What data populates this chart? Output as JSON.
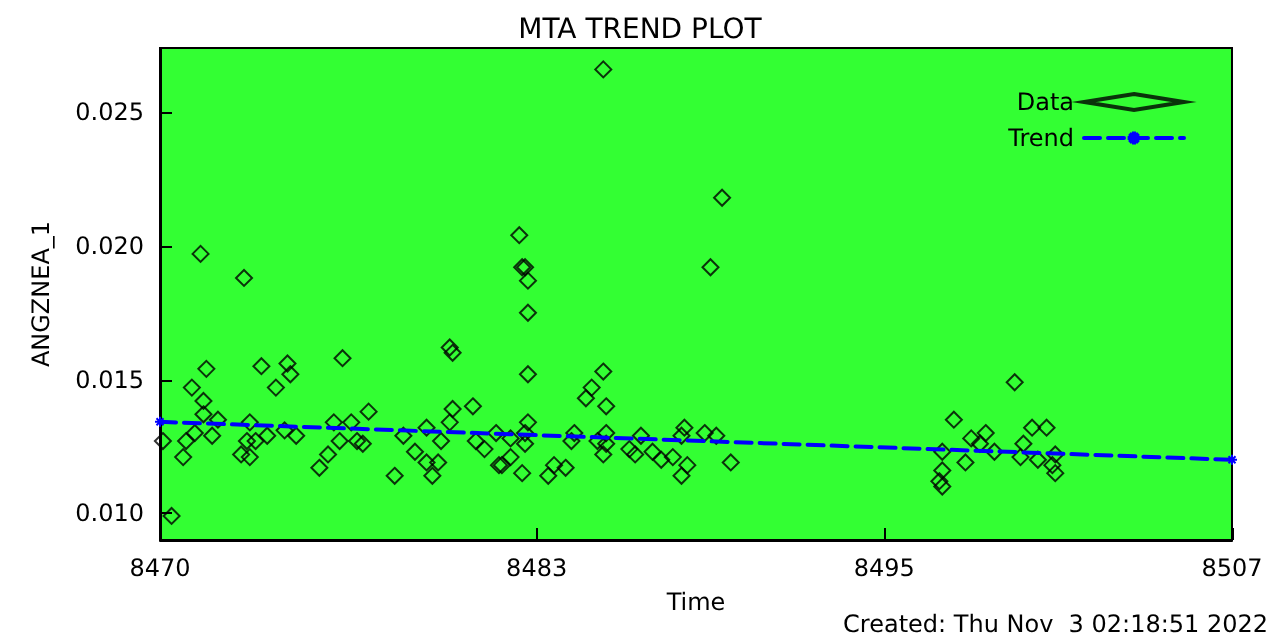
{
  "chart_data": {
    "type": "scatter",
    "title": "MTA TREND PLOT",
    "xlabel": "Time",
    "ylabel": "ANGZNEA_1",
    "annotations": [
      "Created: Thu Nov  3 02:18:51 2022"
    ],
    "xlim": [
      8470,
      8507
    ],
    "xticks": [
      8470,
      8483,
      8495,
      8507
    ],
    "ylim": [
      0.009,
      0.0274
    ],
    "yticks": [
      {
        "value": 0.01,
        "label": "0.010"
      },
      {
        "value": 0.015,
        "label": "0.015"
      },
      {
        "value": 0.02,
        "label": "0.020"
      },
      {
        "value": 0.025,
        "label": "0.025"
      }
    ],
    "grid": false,
    "legend": "top right",
    "series": [
      {
        "name": "Data",
        "type": "scatter",
        "marker": "diamond",
        "color": "#000000",
        "x": [
          8470.4,
          8470.1,
          8470.8,
          8471.4,
          8471.1,
          8471.5,
          8471.6,
          8470.9,
          8471.2,
          8471.5,
          8471.8,
          8472.0,
          8472.9,
          8472.8,
          8473.0,
          8473.1,
          8473.1,
          8473.5,
          8473.3,
          8473.7,
          8474.0,
          8474.3,
          8474.4,
          8474.5,
          8474.7,
          8475.5,
          8475.8,
          8476.0,
          8476.3,
          8476.2,
          8476.8,
          8476.6,
          8477.2,
          8477.0,
          8478.1,
          8478.4,
          8478.8,
          8479.2,
          8479.2,
          8479.4,
          8479.6,
          8479.7,
          8480.0,
          8480.1,
          8480.1,
          8480.0,
          8480.8,
          8480.9,
          8481.2,
          8481.7,
          8481.6,
          8482.1,
          8482.4,
          8482.6,
          8482.5,
          8482.7,
          8482.7,
          8482.7,
          8482.7,
          8482.6,
          8482.6,
          8482.1,
          8482.5,
          8481.8,
          8484.2,
          8484.3,
          8483.4,
          8483.6,
          8484.0,
          8485.3,
          8484.7,
          8484.9,
          8485.3,
          8485.4,
          8485.4,
          8485.1,
          8485.4,
          8485.3,
          8486.2,
          8486.4,
          8486.6,
          8487.0,
          8487.3,
          8487.7,
          8488.0,
          8488.1,
          8488.0,
          8488.2,
          8488.8,
          8489.2,
          8489.0,
          8489.4,
          8489.7,
          8496.9,
          8497.0,
          8497.0,
          8497.0,
          8497.4,
          8497.8,
          8498.0,
          8498.3,
          8498.5,
          8498.8,
          8499.5,
          8499.7,
          8499.8,
          8500.1,
          8500.3,
          8500.6,
          8500.8,
          8500.9,
          8500.9
        ],
        "values": [
          0.0099,
          0.0127,
          0.0121,
          0.0197,
          0.0147,
          0.0142,
          0.0154,
          0.0127,
          0.013,
          0.0137,
          0.0129,
          0.0135,
          0.0188,
          0.0122,
          0.0127,
          0.0121,
          0.0134,
          0.0155,
          0.0127,
          0.0129,
          0.0147,
          0.0131,
          0.0156,
          0.0152,
          0.0129,
          0.0117,
          0.0122,
          0.0134,
          0.0158,
          0.0127,
          0.0127,
          0.0134,
          0.0138,
          0.0126,
          0.0114,
          0.0129,
          0.0123,
          0.0132,
          0.0119,
          0.0114,
          0.0119,
          0.0127,
          0.0162,
          0.016,
          0.0139,
          0.0134,
          0.014,
          0.0127,
          0.0124,
          0.0118,
          0.013,
          0.0128,
          0.0204,
          0.0192,
          0.0192,
          0.0187,
          0.0175,
          0.0152,
          0.0134,
          0.013,
          0.0126,
          0.0121,
          0.0115,
          0.0118,
          0.0127,
          0.013,
          0.0114,
          0.0118,
          0.0117,
          0.0266,
          0.0143,
          0.0147,
          0.0153,
          0.014,
          0.013,
          0.0127,
          0.0126,
          0.0122,
          0.0124,
          0.0122,
          0.0129,
          0.0123,
          0.012,
          0.0121,
          0.0114,
          0.0132,
          0.0129,
          0.0118,
          0.013,
          0.0129,
          0.0192,
          0.0218,
          0.0119,
          0.0112,
          0.011,
          0.0116,
          0.0123,
          0.0135,
          0.0119,
          0.0128,
          0.0126,
          0.013,
          0.0123,
          0.0149,
          0.0121,
          0.0126,
          0.0132,
          0.012,
          0.0132,
          0.0118,
          0.0115,
          0.0122
        ]
      },
      {
        "name": "Trend",
        "type": "line",
        "marker": "cross",
        "line_style": "dashed",
        "color": "#0000ff",
        "x": [
          8470,
          8507
        ],
        "values": [
          0.01342,
          0.012
        ]
      }
    ]
  }
}
